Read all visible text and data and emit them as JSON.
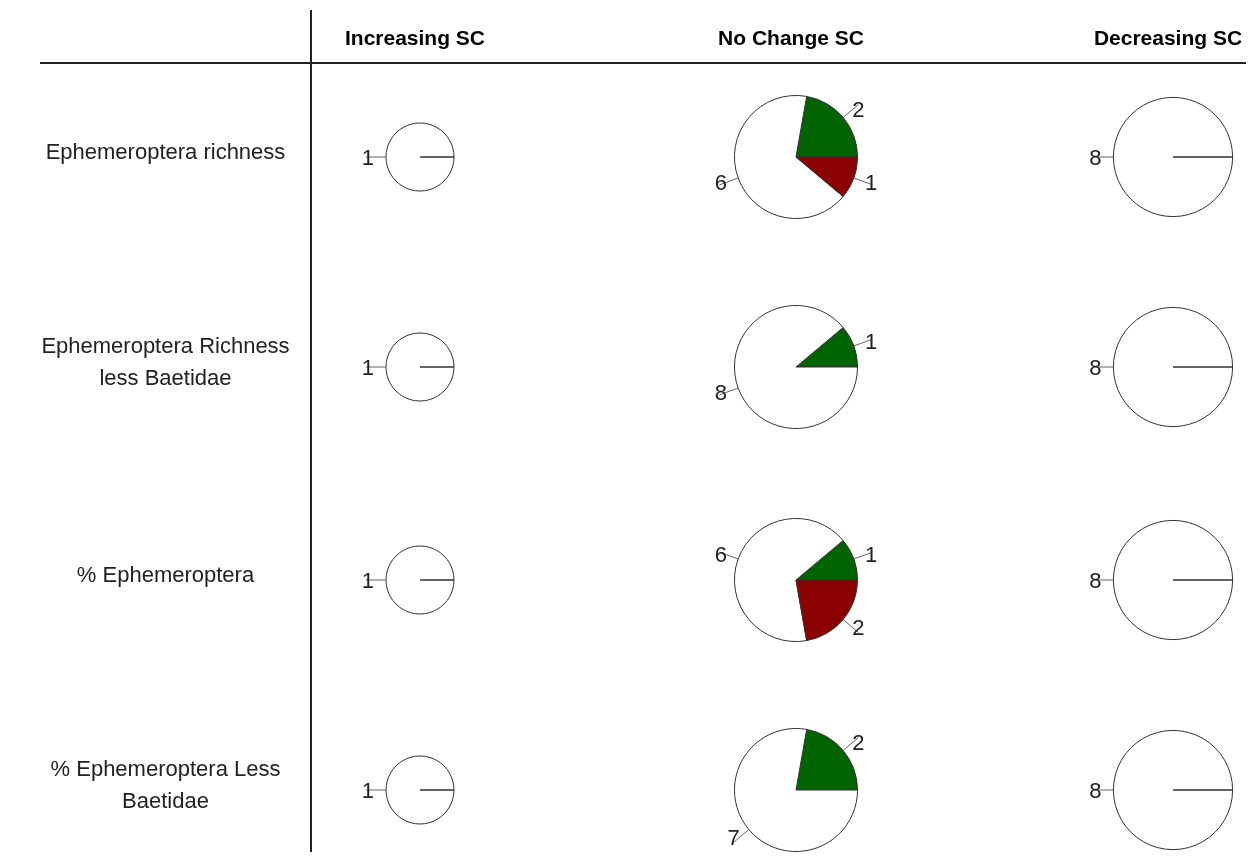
{
  "chart_data": [
    {
      "type": "pie",
      "title": "Increasing SC",
      "ylabel": "Ephemeroptera richness",
      "categories": [
        null
      ],
      "values": [
        1
      ],
      "colors": [
        "#ffffff"
      ],
      "data_labels": true
    },
    {
      "type": "pie",
      "title": "No Change SC",
      "categories": [
        null,
        null,
        null
      ],
      "values": [
        2,
        6,
        1
      ],
      "colors": [
        "#006400",
        "#ffffff",
        "#8b0000"
      ],
      "data_labels": true
    },
    {
      "type": "pie",
      "title": "Decreasing SC",
      "categories": [
        null
      ],
      "values": [
        8
      ],
      "colors": [
        "#ffffff"
      ],
      "data_labels": true
    },
    {
      "type": "pie",
      "ylabel": "Ephemeroptera Richness less Baetidae",
      "categories": [
        null
      ],
      "values": [
        1
      ],
      "colors": [
        "#ffffff"
      ],
      "data_labels": true
    },
    {
      "type": "pie",
      "categories": [
        null,
        null
      ],
      "values": [
        1,
        8
      ],
      "colors": [
        "#006400",
        "#ffffff"
      ],
      "data_labels": true
    },
    {
      "type": "pie",
      "categories": [
        null
      ],
      "values": [
        8
      ],
      "colors": [
        "#ffffff"
      ],
      "data_labels": true
    },
    {
      "type": "pie",
      "ylabel": "% Ephemeroptera",
      "categories": [
        null
      ],
      "values": [
        1
      ],
      "colors": [
        "#ffffff"
      ],
      "data_labels": true
    },
    {
      "type": "pie",
      "categories": [
        null,
        null,
        null
      ],
      "values": [
        1,
        6,
        2
      ],
      "colors": [
        "#006400",
        "#ffffff",
        "#8b0000"
      ],
      "data_labels": true
    },
    {
      "type": "pie",
      "categories": [
        null
      ],
      "values": [
        8
      ],
      "colors": [
        "#ffffff"
      ],
      "data_labels": true
    },
    {
      "type": "pie",
      "ylabel": "% Ephemeroptera Less Baetidae",
      "categories": [
        null
      ],
      "values": [
        1
      ],
      "colors": [
        "#ffffff"
      ],
      "data_labels": true
    },
    {
      "type": "pie",
      "categories": [
        null,
        null
      ],
      "values": [
        2,
        7
      ],
      "colors": [
        "#006400",
        "#ffffff"
      ],
      "data_labels": true
    },
    {
      "type": "pie",
      "categories": [
        null
      ],
      "values": [
        8
      ],
      "colors": [
        "#ffffff"
      ],
      "data_labels": true
    }
  ]
}
